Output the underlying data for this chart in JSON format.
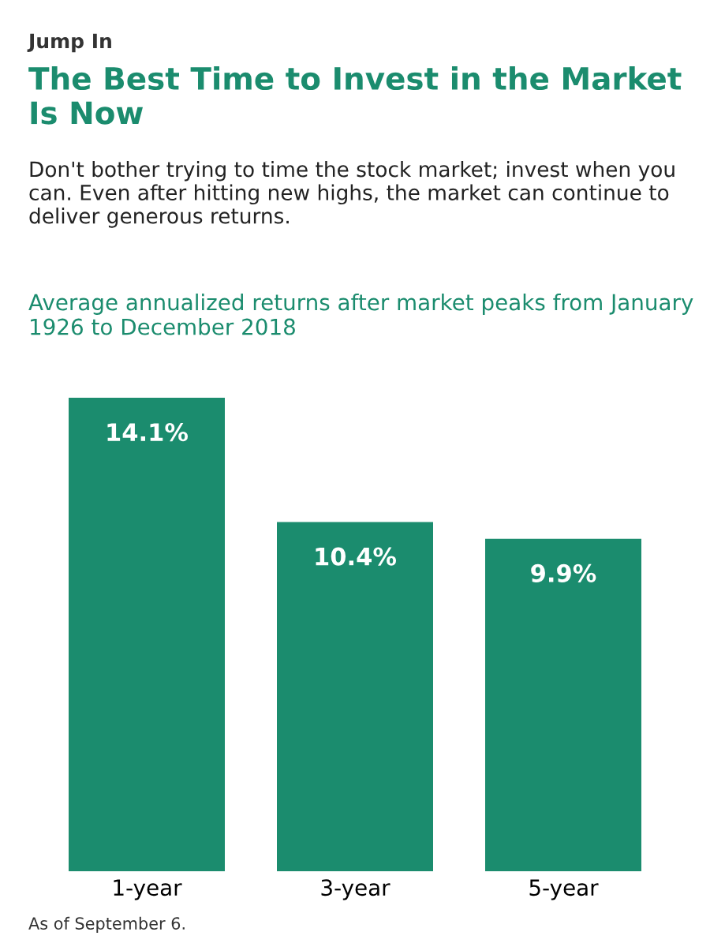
{
  "chart_data": {
    "type": "bar",
    "title": "The Best Time to Invest in the Market Is Now",
    "subtitle": "Don't bother trying to time the stock market; invest when you can. Even after hitting new highs, the market can continue to deliver generous returns.",
    "annotations": [
      "Jump In",
      "Average annualized returns after market peaks from January 1926 to December 2018",
      "As of September 6."
    ],
    "categories": [
      "1-year",
      "3-year",
      "5-year"
    ],
    "values": [
      14.1,
      10.4,
      9.9
    ],
    "color": "#1b8c6e",
    "value_labels": [
      "14.1%",
      "10.4%",
      "9.9%"
    ]
  }
}
